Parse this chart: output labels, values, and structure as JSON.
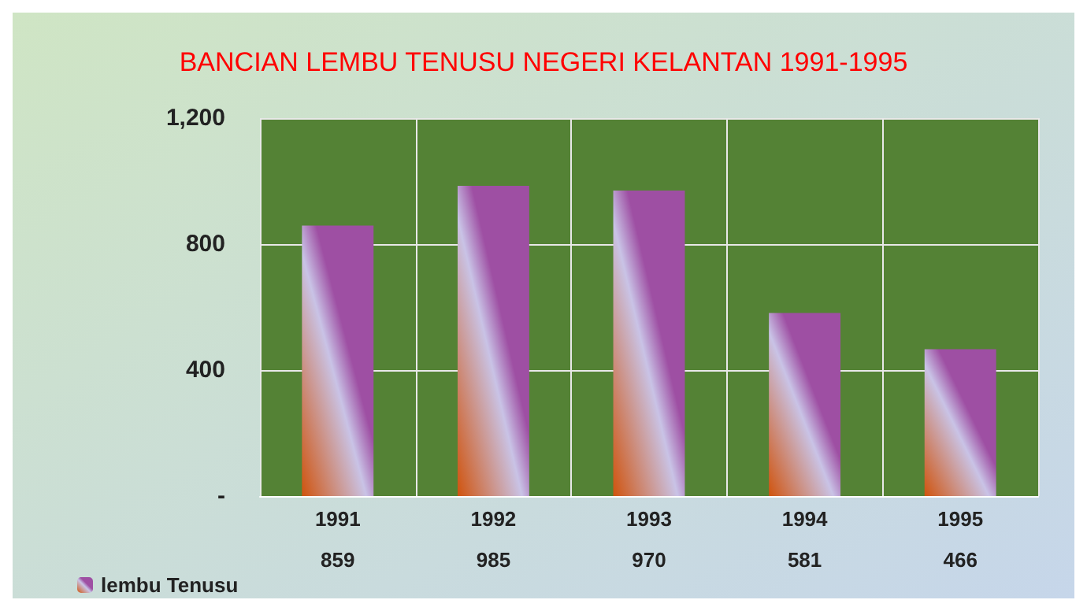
{
  "chart_data": {
    "type": "bar",
    "title": "BANCIAN LEMBU TENUSU NEGERI KELANTAN 1991-1995",
    "categories": [
      "1991",
      "1992",
      "1993",
      "1994",
      "1995"
    ],
    "series": [
      {
        "name": "lembu Tenusu",
        "color": "#9e4fa3",
        "values": [
          859,
          985,
          970,
          581,
          466
        ]
      }
    ],
    "ylim": [
      0,
      1200
    ],
    "yticks": [
      {
        "value": 0,
        "label": "-"
      },
      400,
      800,
      {
        "value": 1200,
        "label": "1,200"
      }
    ],
    "grid": true,
    "legend": "bottom left",
    "data_labels": true
  }
}
